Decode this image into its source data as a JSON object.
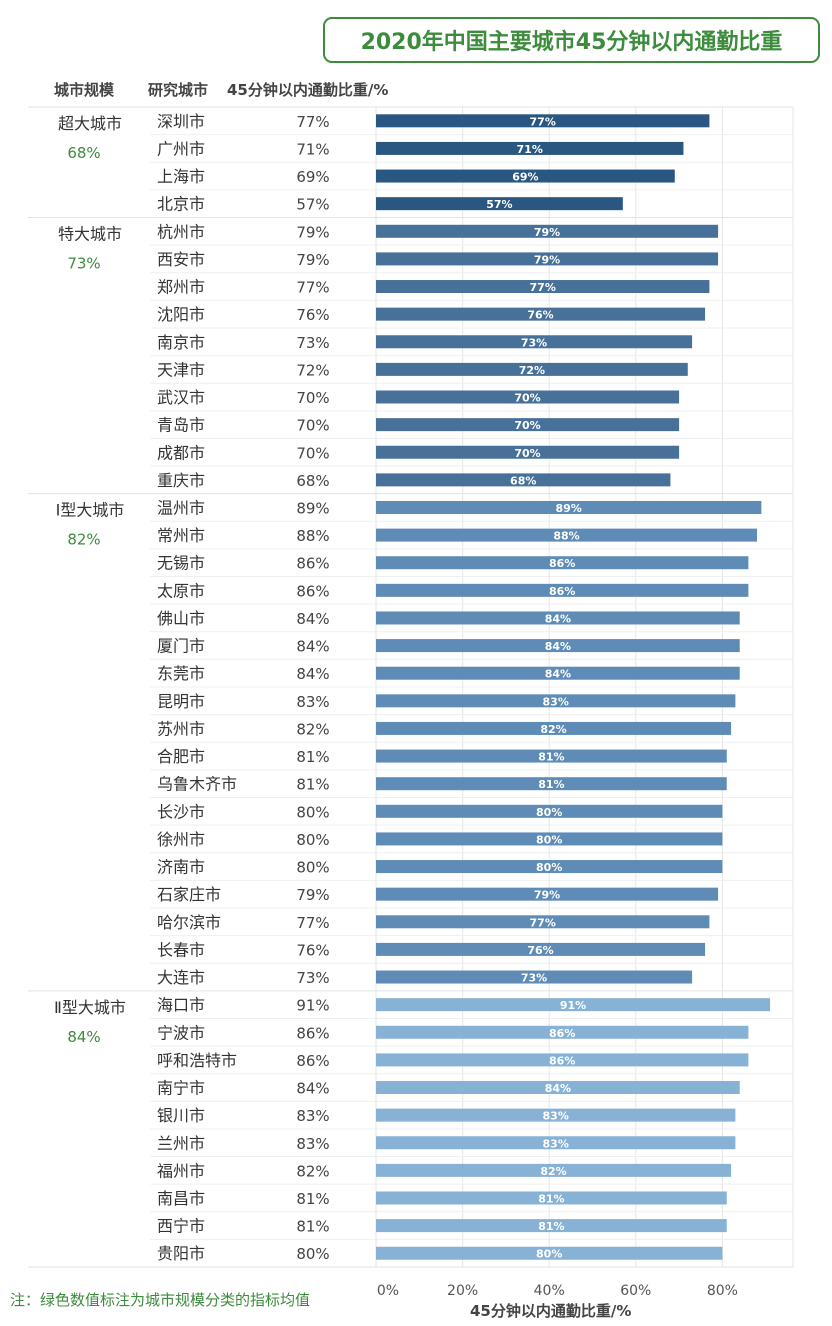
{
  "header": {
    "title": "2020年中国主要城市45分钟以内通勤比重",
    "col_category": "城市规模",
    "col_city": "研究城市",
    "col_value": "45分钟以内通勤比重/%"
  },
  "note": "注：绿色数值标注为城市规模分类的指标均值",
  "colors": {
    "accent_green": "#3d8b3d",
    "groups": [
      "#2a5682",
      "#48719a",
      "#5e8cb6",
      "#87b2d6"
    ]
  },
  "chart_data": {
    "type": "bar",
    "orientation": "horizontal",
    "xlabel": "45分钟以内通勤比重/%",
    "xlim": [
      0,
      95
    ],
    "xticks": [
      "0%",
      "20%",
      "40%",
      "60%",
      "80%"
    ],
    "grid": true,
    "groups": [
      {
        "name": "超大城市",
        "mean_label": "68%",
        "cities": [
          "深圳市",
          "广州市",
          "上海市",
          "北京市"
        ],
        "values": [
          77,
          71,
          69,
          57
        ]
      },
      {
        "name": "特大城市",
        "mean_label": "73%",
        "cities": [
          "杭州市",
          "西安市",
          "郑州市",
          "沈阳市",
          "南京市",
          "天津市",
          "武汉市",
          "青岛市",
          "成都市",
          "重庆市"
        ],
        "values": [
          79,
          79,
          77,
          76,
          73,
          72,
          70,
          70,
          70,
          68
        ]
      },
      {
        "name": "Ⅰ型大城市",
        "mean_label": "82%",
        "cities": [
          "温州市",
          "常州市",
          "无锡市",
          "太原市",
          "佛山市",
          "厦门市",
          "东莞市",
          "昆明市",
          "苏州市",
          "合肥市",
          "乌鲁木齐市",
          "长沙市",
          "徐州市",
          "济南市",
          "石家庄市",
          "哈尔滨市",
          "长春市",
          "大连市"
        ],
        "values": [
          89,
          88,
          86,
          86,
          84,
          84,
          84,
          83,
          82,
          81,
          81,
          80,
          80,
          80,
          79,
          77,
          76,
          73
        ]
      },
      {
        "name": "Ⅱ型大城市",
        "mean_label": "84%",
        "cities": [
          "海口市",
          "宁波市",
          "呼和浩特市",
          "南宁市",
          "银川市",
          "兰州市",
          "福州市",
          "南昌市",
          "西宁市",
          "贵阳市"
        ],
        "values": [
          91,
          86,
          86,
          84,
          83,
          83,
          82,
          81,
          81,
          80
        ]
      }
    ]
  }
}
